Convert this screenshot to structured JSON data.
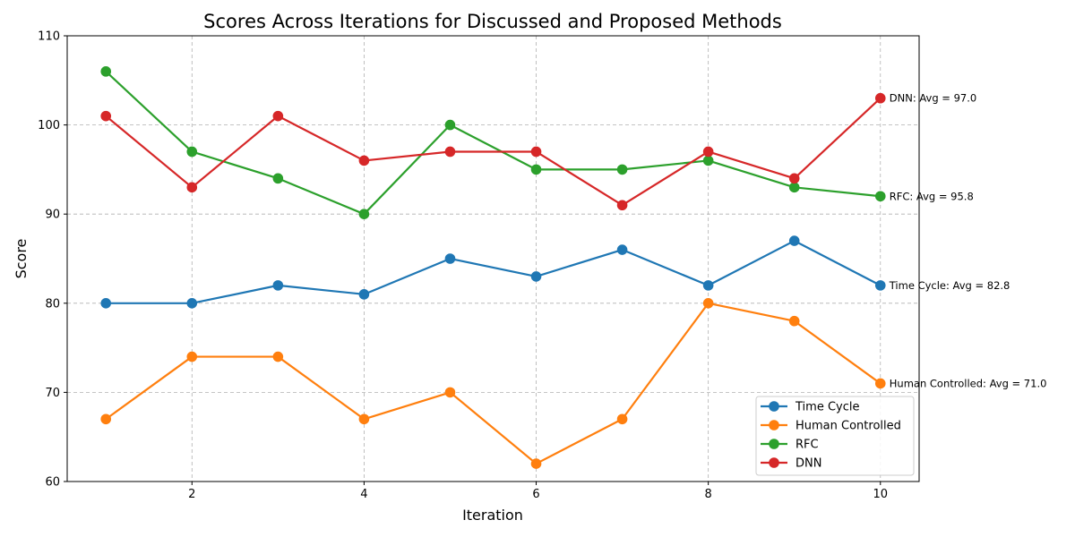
{
  "chart_data": {
    "type": "line",
    "title": "Scores Across Iterations for Discussed and Proposed Methods",
    "xlabel": "Iteration",
    "ylabel": "Score",
    "x": [
      1,
      2,
      3,
      4,
      5,
      6,
      7,
      8,
      9,
      10
    ],
    "xlim": [
      0.55,
      10.45
    ],
    "ylim": [
      60,
      110
    ],
    "xticks": [
      2,
      4,
      6,
      8,
      10
    ],
    "yticks": [
      60,
      70,
      80,
      90,
      100,
      110
    ],
    "grid": true,
    "legend_position": "bottom-right",
    "series": [
      {
        "name": "Time Cycle",
        "color": "#1f77b4",
        "values": [
          80,
          80,
          82,
          81,
          85,
          83,
          86,
          82,
          87,
          82
        ],
        "annotation": "Time Cycle: Avg = 82.8"
      },
      {
        "name": "Human Controlled",
        "color": "#ff7f0e",
        "values": [
          67,
          74,
          74,
          67,
          70,
          62,
          67,
          80,
          78,
          71
        ],
        "annotation": "Human Controlled: Avg = 71.0"
      },
      {
        "name": "RFC",
        "color": "#2ca02c",
        "values": [
          106,
          97,
          94,
          90,
          100,
          95,
          95,
          96,
          93,
          92
        ],
        "annotation": "RFC: Avg = 95.8"
      },
      {
        "name": "DNN",
        "color": "#d62728",
        "values": [
          101,
          93,
          101,
          96,
          97,
          97,
          91,
          97,
          94,
          103
        ],
        "annotation": "DNN: Avg = 97.0"
      }
    ]
  }
}
